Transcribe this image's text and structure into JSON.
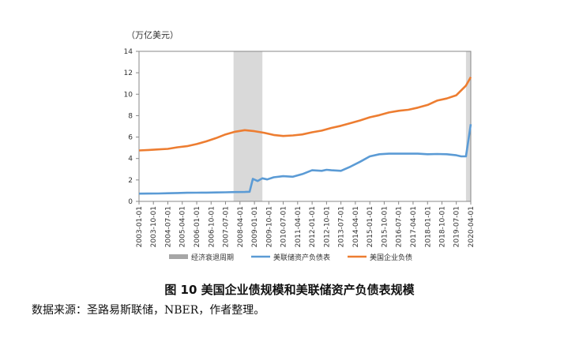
{
  "figure": {
    "caption": "图 10  美国企业债规模和美联储资产负债表规模",
    "source": "数据来源：圣路易斯联储，NBER，作者整理。"
  },
  "chart_data": {
    "type": "line",
    "unit_label": "（万亿美元）",
    "ylim": [
      0,
      14
    ],
    "yticks": [
      0,
      2,
      4,
      6,
      8,
      10,
      12,
      14
    ],
    "x_start": "2003-01-01",
    "x_end": "2020-04-01",
    "xtick_labels": [
      "2003-01-01",
      "2003-10-01",
      "2004-07-01",
      "2005-04-01",
      "2006-01-01",
      "2006-10-01",
      "2007-07-01",
      "2008-04-01",
      "2009-01-01",
      "2009-10-01",
      "2010-07-01",
      "2011-04-01",
      "2012-01-01",
      "2012-10-01",
      "2013-07-01",
      "2014-04-01",
      "2015-01-01",
      "2015-10-01",
      "2016-07-01",
      "2017-04-01",
      "2018-01-01",
      "2018-10-01",
      "2019-07-01",
      "2020-04-01"
    ],
    "grid": false,
    "legend_position": "bottom",
    "recessions": [
      {
        "start": "2007-12-01",
        "end": "2009-06-01"
      },
      {
        "start": "2020-01-01",
        "end": "2020-04-01"
      }
    ],
    "series": [
      {
        "name": "经济衰退周期",
        "kind": "shaded",
        "color": "#a6a6a6"
      },
      {
        "name": "美联储资产负债表",
        "color": "#5b9bd5",
        "points": [
          [
            "2003-01-01",
            0.72
          ],
          [
            "2003-07-01",
            0.73
          ],
          [
            "2004-01-01",
            0.74
          ],
          [
            "2004-07-01",
            0.76
          ],
          [
            "2005-01-01",
            0.78
          ],
          [
            "2005-07-01",
            0.8
          ],
          [
            "2006-01-01",
            0.81
          ],
          [
            "2006-07-01",
            0.82
          ],
          [
            "2007-01-01",
            0.83
          ],
          [
            "2007-07-01",
            0.85
          ],
          [
            "2008-01-01",
            0.87
          ],
          [
            "2008-07-01",
            0.88
          ],
          [
            "2008-10-01",
            0.9
          ],
          [
            "2008-12-01",
            2.1
          ],
          [
            "2009-03-01",
            1.9
          ],
          [
            "2009-06-01",
            2.15
          ],
          [
            "2009-09-01",
            2.05
          ],
          [
            "2010-01-01",
            2.25
          ],
          [
            "2010-07-01",
            2.35
          ],
          [
            "2011-01-01",
            2.3
          ],
          [
            "2011-07-01",
            2.55
          ],
          [
            "2012-01-01",
            2.9
          ],
          [
            "2012-07-01",
            2.85
          ],
          [
            "2012-10-01",
            2.95
          ],
          [
            "2013-01-01",
            2.9
          ],
          [
            "2013-07-01",
            2.85
          ],
          [
            "2014-01-01",
            3.25
          ],
          [
            "2014-07-01",
            3.7
          ],
          [
            "2015-01-01",
            4.2
          ],
          [
            "2015-07-01",
            4.4
          ],
          [
            "2016-01-01",
            4.45
          ],
          [
            "2016-07-01",
            4.45
          ],
          [
            "2017-01-01",
            4.45
          ],
          [
            "2017-07-01",
            4.45
          ],
          [
            "2018-01-01",
            4.4
          ],
          [
            "2018-07-01",
            4.42
          ],
          [
            "2019-01-01",
            4.4
          ],
          [
            "2019-07-01",
            4.3
          ],
          [
            "2019-10-01",
            4.2
          ],
          [
            "2020-01-01",
            4.2
          ],
          [
            "2020-04-01",
            7.2
          ]
        ]
      },
      {
        "name": "美国企业负债",
        "color": "#ed7d31",
        "points": [
          [
            "2003-01-01",
            4.75
          ],
          [
            "2003-07-01",
            4.8
          ],
          [
            "2004-01-01",
            4.85
          ],
          [
            "2004-07-01",
            4.9
          ],
          [
            "2005-01-01",
            5.05
          ],
          [
            "2005-07-01",
            5.15
          ],
          [
            "2006-01-01",
            5.35
          ],
          [
            "2006-07-01",
            5.6
          ],
          [
            "2007-01-01",
            5.9
          ],
          [
            "2007-07-01",
            6.25
          ],
          [
            "2008-01-01",
            6.5
          ],
          [
            "2008-07-01",
            6.65
          ],
          [
            "2009-01-01",
            6.55
          ],
          [
            "2009-07-01",
            6.4
          ],
          [
            "2010-01-01",
            6.2
          ],
          [
            "2010-07-01",
            6.1
          ],
          [
            "2011-01-01",
            6.15
          ],
          [
            "2011-07-01",
            6.25
          ],
          [
            "2012-01-01",
            6.45
          ],
          [
            "2012-07-01",
            6.6
          ],
          [
            "2013-01-01",
            6.85
          ],
          [
            "2013-07-01",
            7.05
          ],
          [
            "2014-01-01",
            7.3
          ],
          [
            "2014-07-01",
            7.55
          ],
          [
            "2015-01-01",
            7.85
          ],
          [
            "2015-07-01",
            8.05
          ],
          [
            "2016-01-01",
            8.3
          ],
          [
            "2016-07-01",
            8.45
          ],
          [
            "2017-01-01",
            8.55
          ],
          [
            "2017-07-01",
            8.75
          ],
          [
            "2018-01-01",
            9.0
          ],
          [
            "2018-07-01",
            9.4
          ],
          [
            "2019-01-01",
            9.6
          ],
          [
            "2019-07-01",
            9.9
          ],
          [
            "2020-01-01",
            10.8
          ],
          [
            "2020-04-01",
            11.6
          ]
        ]
      }
    ]
  }
}
